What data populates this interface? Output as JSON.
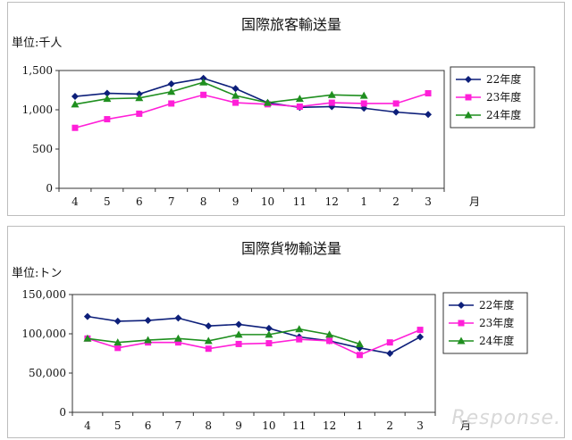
{
  "chart_data": [
    {
      "type": "line",
      "title": "国際旅客輸送量",
      "unit_label": "単位:千人",
      "categories": [
        "4",
        "5",
        "6",
        "7",
        "8",
        "9",
        "10",
        "11",
        "12",
        "1",
        "2",
        "3"
      ],
      "x_unit": "月",
      "ylim": [
        0,
        1500
      ],
      "yticks": [
        0,
        500,
        1000,
        1500
      ],
      "ytick_labels": [
        "0",
        "500",
        "1,000",
        "1,500"
      ],
      "grid": false,
      "legend_position": "right",
      "series": [
        {
          "name": "22年度",
          "color": "#0d1f7a",
          "marker": "diamond",
          "values": [
            1170,
            1210,
            1200,
            1330,
            1400,
            1270,
            1090,
            1030,
            1040,
            1020,
            970,
            940
          ]
        },
        {
          "name": "23年度",
          "color": "#ff1fd8",
          "marker": "square",
          "values": [
            770,
            880,
            950,
            1080,
            1190,
            1090,
            1070,
            1040,
            1090,
            1080,
            1080,
            1210
          ]
        },
        {
          "name": "24年度",
          "color": "#1f8f1f",
          "marker": "triangle",
          "values": [
            1070,
            1140,
            1150,
            1230,
            1350,
            1180,
            1090,
            1140,
            1190,
            1180,
            null,
            null
          ]
        }
      ]
    },
    {
      "type": "line",
      "title": "国際貨物輸送量",
      "unit_label": "単位:トン",
      "categories": [
        "4",
        "5",
        "6",
        "7",
        "8",
        "9",
        "10",
        "11",
        "12",
        "1",
        "2",
        "3"
      ],
      "x_unit": "月",
      "ylim": [
        0,
        150000
      ],
      "yticks": [
        0,
        50000,
        100000,
        150000
      ],
      "ytick_labels": [
        "0",
        "50,000",
        "100,000",
        "150,000"
      ],
      "grid": false,
      "legend_position": "right",
      "series": [
        {
          "name": "22年度",
          "color": "#0d1f7a",
          "marker": "diamond",
          "values": [
            122000,
            116000,
            117000,
            120000,
            110000,
            112000,
            107000,
            96000,
            91000,
            82000,
            75000,
            96000
          ]
        },
        {
          "name": "23年度",
          "color": "#ff1fd8",
          "marker": "square",
          "values": [
            94000,
            82000,
            89000,
            89000,
            81000,
            87000,
            88000,
            93000,
            91000,
            73000,
            89000,
            105000
          ]
        },
        {
          "name": "24年度",
          "color": "#1f8f1f",
          "marker": "triangle",
          "values": [
            94000,
            89000,
            92000,
            94000,
            91000,
            99000,
            99000,
            106000,
            99000,
            87000,
            null,
            null
          ]
        }
      ]
    }
  ],
  "watermark": "Response."
}
